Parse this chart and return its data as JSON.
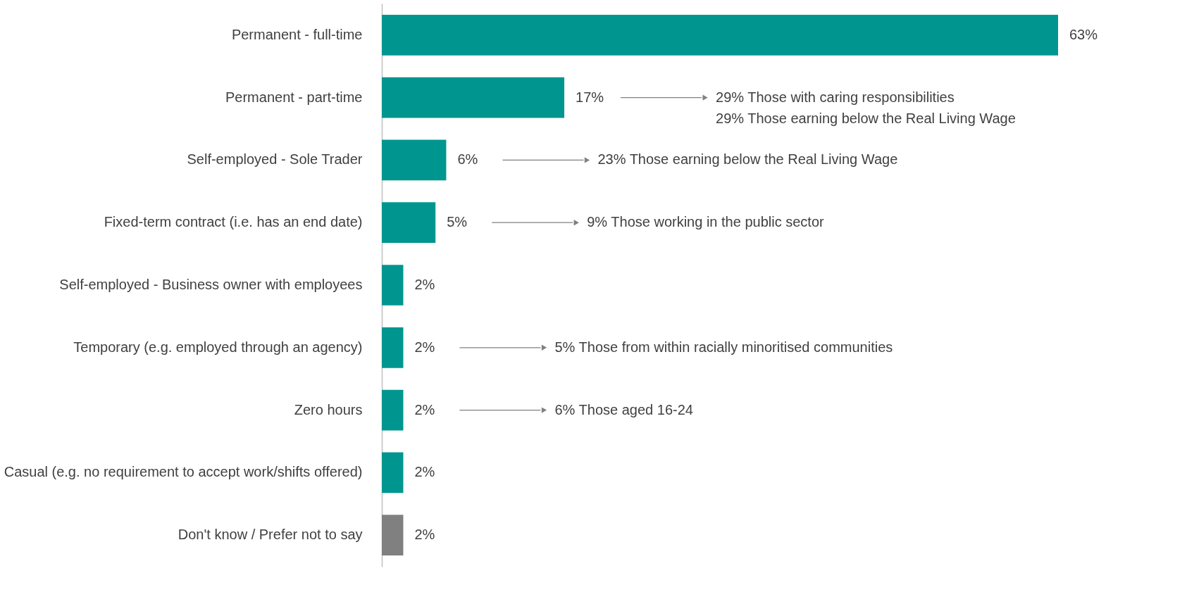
{
  "chart_data": {
    "type": "bar",
    "orientation": "horizontal",
    "categories": [
      "Permanent - full-time",
      "Permanent - part-time",
      "Self-employed - Sole Trader",
      "Fixed-term contract (i.e. has an end date)",
      "Self-employed - Business owner with employees",
      "Temporary (e.g. employed through an agency)",
      "Zero hours",
      "Casual (e.g. no requirement to accept work/shifts offered)",
      "Don't know / Prefer not to say"
    ],
    "values": [
      63,
      17,
      6,
      5,
      2,
      2,
      2,
      2,
      2
    ],
    "value_labels": [
      "63%",
      "17%",
      "6%",
      "5%",
      "2%",
      "2%",
      "2%",
      "2%",
      "2%"
    ],
    "colors": [
      "#00968f",
      "#00968f",
      "#00968f",
      "#00968f",
      "#00968f",
      "#00968f",
      "#00968f",
      "#00968f",
      "#808080"
    ],
    "annotations": [
      "29% Those with caring responsibilities",
      "29% Those earning below the Real Living Wage",
      "23% Those earning below the Real Living Wage",
      "9% Those working in the public sector",
      "5% Those from within racially minoritised communities",
      "6% Those aged 16-24"
    ]
  }
}
